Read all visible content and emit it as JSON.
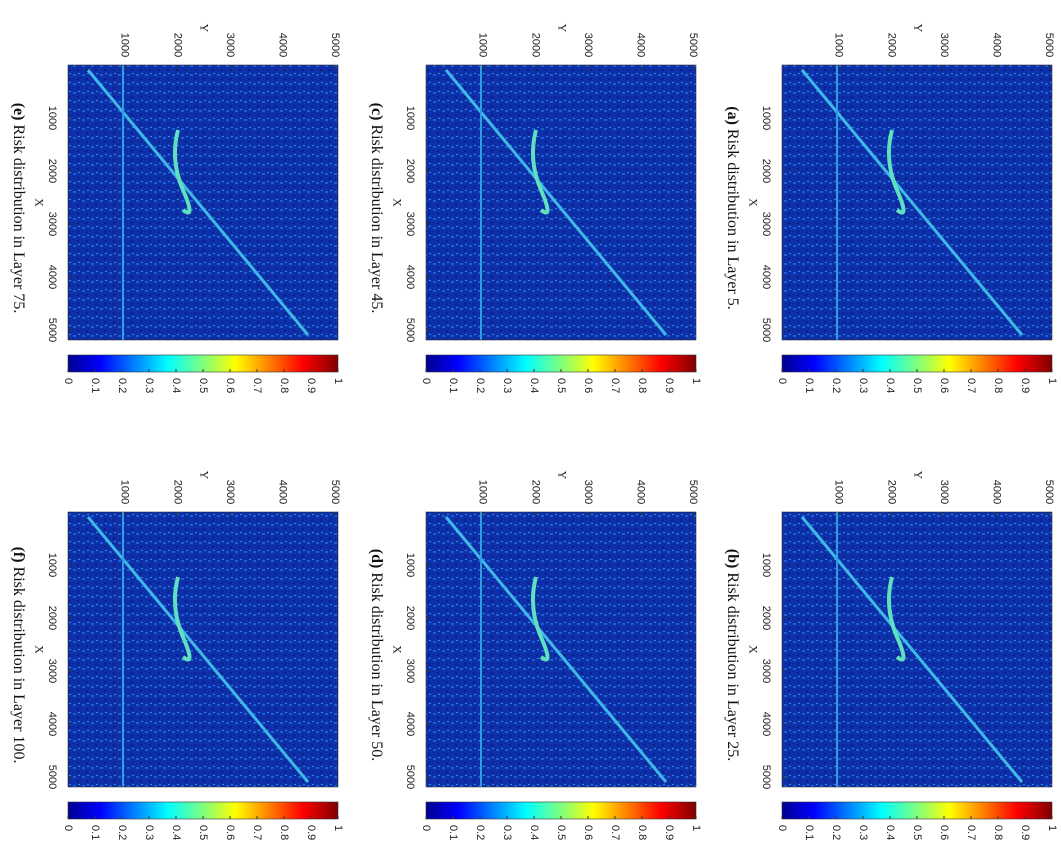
{
  "panels": [
    {
      "label": "(a)",
      "caption": "Risk distribution in Layer 5."
    },
    {
      "label": "(b)",
      "caption": "Risk distribution in Layer 25."
    },
    {
      "label": "(c)",
      "caption": "Risk distribution in Layer 45."
    },
    {
      "label": "(d)",
      "caption": "Risk distribution in Layer 50."
    },
    {
      "label": "(e)",
      "caption": "Risk distribution in Layer 75."
    },
    {
      "label": "(f)",
      "caption": "Risk distribution in Layer 100."
    }
  ],
  "x_label": "X",
  "y_label": "Y",
  "xticks": [
    1000,
    2000,
    3000,
    4000,
    5000
  ],
  "yticks": [
    1000,
    2000,
    3000,
    4000,
    5000
  ],
  "colorbar_ticks": [
    0,
    0.1,
    0.2,
    0.3,
    0.4,
    0.5,
    0.6,
    0.7,
    0.8,
    0.9,
    1
  ]
}
